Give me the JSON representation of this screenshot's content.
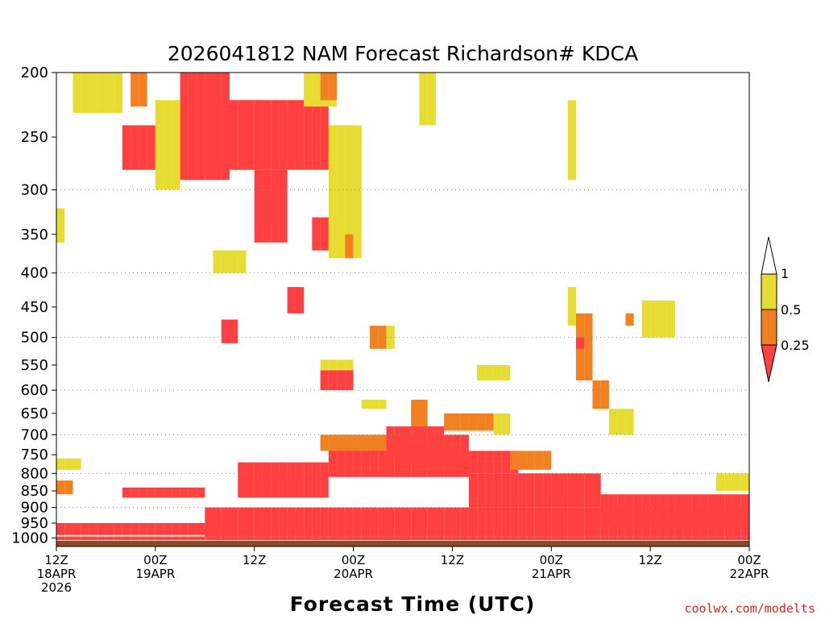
{
  "chart_data": {
    "type": "heatmap",
    "title": "2026041812 NAM Forecast Richardson# KDCA",
    "xlabel": "Forecast Time (UTC)",
    "credit": "coolwx.com/modelts",
    "x_range_hours": [
      0,
      84
    ],
    "x_ticks": [
      {
        "hour": 0,
        "line1": "12Z",
        "line2": "18APR",
        "line3": "2026"
      },
      {
        "hour": 12,
        "line1": "00Z",
        "line2": "19APR",
        "line3": ""
      },
      {
        "hour": 24,
        "line1": "12Z",
        "line2": "",
        "line3": ""
      },
      {
        "hour": 36,
        "line1": "00Z",
        "line2": "20APR",
        "line3": ""
      },
      {
        "hour": 48,
        "line1": "12Z",
        "line2": "",
        "line3": ""
      },
      {
        "hour": 60,
        "line1": "00Z",
        "line2": "21APR",
        "line3": ""
      },
      {
        "hour": 72,
        "line1": "12Z",
        "line2": "",
        "line3": ""
      },
      {
        "hour": 84,
        "line1": "00Z",
        "line2": "22APR",
        "line3": ""
      }
    ],
    "y_axis": "pressure (hPa), log scale, reversed",
    "y_range_hpa": [
      1030,
      200
    ],
    "y_ticks": [
      200,
      250,
      300,
      350,
      400,
      450,
      500,
      550,
      600,
      650,
      700,
      750,
      800,
      850,
      900,
      950,
      1000
    ],
    "gridlines_hpa": [
      300,
      400,
      500,
      600,
      700,
      800,
      900,
      1000
    ],
    "legend": {
      "bins": [
        {
          "label": "<0.25",
          "color": "#ff4040"
        },
        {
          "label": "0.25-0.5",
          "color": "#f08020"
        },
        {
          "label": "0.5-1",
          "color": "#e6dc32"
        },
        {
          "label": ">1",
          "color": "#ffffff"
        }
      ],
      "boundaries": [
        "1",
        "0.5",
        "0.25"
      ]
    },
    "ground_color": "#8b4a26",
    "ground_hpa": 1010,
    "cell_hours": 1,
    "cell_hpa": 25,
    "regions": [
      {
        "bin": "0.5-1",
        "x": [
          2,
          8
        ],
        "p": [
          200,
          230
        ]
      },
      {
        "bin": "0.25-0.5",
        "x": [
          9,
          11
        ],
        "p": [
          200,
          225
        ]
      },
      {
        "bin": "<0.25",
        "x": [
          15,
          21
        ],
        "p": [
          200,
          290
        ]
      },
      {
        "bin": "<0.25",
        "x": [
          8,
          12
        ],
        "p": [
          240,
          280
        ]
      },
      {
        "bin": "0.5-1",
        "x": [
          12,
          15
        ],
        "p": [
          220,
          300
        ]
      },
      {
        "bin": "<0.25",
        "x": [
          19,
          33
        ],
        "p": [
          220,
          280
        ]
      },
      {
        "bin": "<0.25",
        "x": [
          24,
          28
        ],
        "p": [
          280,
          360
        ]
      },
      {
        "bin": "0.5-1",
        "x": [
          30,
          34
        ],
        "p": [
          200,
          225
        ]
      },
      {
        "bin": "0.25-0.5",
        "x": [
          32,
          34
        ],
        "p": [
          200,
          220
        ]
      },
      {
        "bin": "<0.25",
        "x": [
          31,
          34
        ],
        "p": [
          330,
          370
        ]
      },
      {
        "bin": "0.5-1",
        "x": [
          33,
          37
        ],
        "p": [
          240,
          380
        ]
      },
      {
        "bin": "0.25-0.5",
        "x": [
          35,
          36
        ],
        "p": [
          350,
          380
        ]
      },
      {
        "bin": "0.5-1",
        "x": [
          44,
          46
        ],
        "p": [
          200,
          240
        ]
      },
      {
        "bin": "0.5-1",
        "x": [
          62,
          63
        ],
        "p": [
          220,
          290
        ]
      },
      {
        "bin": "0.5-1",
        "x": [
          0,
          1
        ],
        "p": [
          320,
          360
        ]
      },
      {
        "bin": "0.5-1",
        "x": [
          19,
          23
        ],
        "p": [
          370,
          400
        ]
      },
      {
        "bin": "<0.25",
        "x": [
          28,
          30
        ],
        "p": [
          420,
          460
        ]
      },
      {
        "bin": "<0.25",
        "x": [
          20,
          22
        ],
        "p": [
          470,
          510
        ]
      },
      {
        "bin": "0.25-0.5",
        "x": [
          38,
          40
        ],
        "p": [
          480,
          520
        ]
      },
      {
        "bin": "0.5-1",
        "x": [
          40,
          41
        ],
        "p": [
          480,
          520
        ]
      },
      {
        "bin": "0.5-1",
        "x": [
          62,
          63
        ],
        "p": [
          420,
          480
        ]
      },
      {
        "bin": "0.25-0.5",
        "x": [
          63,
          65
        ],
        "p": [
          460,
          580
        ]
      },
      {
        "bin": "<0.25",
        "x": [
          63,
          64
        ],
        "p": [
          500,
          520
        ]
      },
      {
        "bin": "0.25-0.5",
        "x": [
          65,
          67
        ],
        "p": [
          580,
          640
        ]
      },
      {
        "bin": "0.5-1",
        "x": [
          67,
          70
        ],
        "p": [
          640,
          700
        ]
      },
      {
        "bin": "0.5-1",
        "x": [
          71,
          75
        ],
        "p": [
          440,
          500
        ]
      },
      {
        "bin": "0.25-0.5",
        "x": [
          69,
          70
        ],
        "p": [
          460,
          480
        ]
      },
      {
        "bin": "0.5-1",
        "x": [
          51,
          55
        ],
        "p": [
          550,
          580
        ]
      },
      {
        "bin": "<0.25",
        "x": [
          32,
          36
        ],
        "p": [
          560,
          600
        ]
      },
      {
        "bin": "0.5-1",
        "x": [
          32,
          36
        ],
        "p": [
          540,
          560
        ]
      },
      {
        "bin": "0.5-1",
        "x": [
          37,
          40
        ],
        "p": [
          620,
          640
        ]
      },
      {
        "bin": "0.25-0.5",
        "x": [
          43,
          45
        ],
        "p": [
          620,
          680
        ]
      },
      {
        "bin": "0.25-0.5",
        "x": [
          47,
          53
        ],
        "p": [
          650,
          690
        ]
      },
      {
        "bin": "0.5-1",
        "x": [
          53,
          55
        ],
        "p": [
          650,
          700
        ]
      },
      {
        "bin": "<0.25",
        "x": [
          33,
          50
        ],
        "p": [
          700,
          810
        ]
      },
      {
        "bin": "0.25-0.5",
        "x": [
          32,
          44
        ],
        "p": [
          700,
          740
        ]
      },
      {
        "bin": "<0.25",
        "x": [
          40,
          47
        ],
        "p": [
          680,
          760
        ]
      },
      {
        "bin": "<0.25",
        "x": [
          22,
          33
        ],
        "p": [
          770,
          870
        ]
      },
      {
        "bin": "<0.25",
        "x": [
          45,
          56
        ],
        "p": [
          740,
          800
        ]
      },
      {
        "bin": "0.25-0.5",
        "x": [
          55,
          60
        ],
        "p": [
          740,
          790
        ]
      },
      {
        "bin": "<0.25",
        "x": [
          50,
          66
        ],
        "p": [
          800,
          900
        ]
      },
      {
        "bin": "<0.25",
        "x": [
          66,
          84
        ],
        "p": [
          860,
          960
        ]
      },
      {
        "bin": "0.5-1",
        "x": [
          80,
          84
        ],
        "p": [
          800,
          850
        ]
      },
      {
        "bin": "<0.25",
        "x": [
          0,
          20
        ],
        "p": [
          950,
          990
        ]
      },
      {
        "bin": "<0.25",
        "x": [
          18,
          84
        ],
        "p": [
          900,
          995
        ]
      },
      {
        "bin": "<0.25",
        "x": [
          8,
          18
        ],
        "p": [
          840,
          870
        ]
      },
      {
        "bin": "0.25-0.5",
        "x": [
          0,
          2
        ],
        "p": [
          820,
          860
        ]
      },
      {
        "bin": "0.5-1",
        "x": [
          0,
          3
        ],
        "p": [
          760,
          790
        ]
      },
      {
        "bin": "<0.25",
        "x": [
          0,
          84
        ],
        "p": [
          995,
          1008
        ]
      }
    ]
  }
}
